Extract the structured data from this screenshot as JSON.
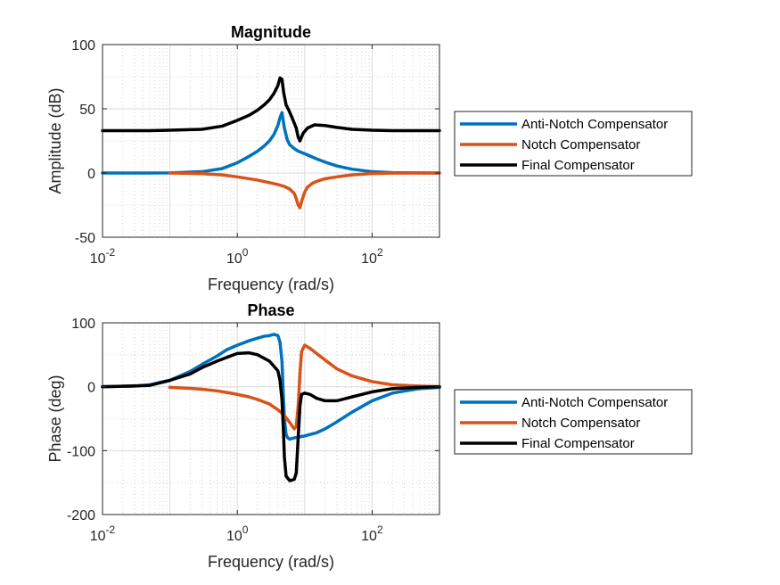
{
  "chart_data": [
    {
      "type": "line",
      "title": "Magnitude",
      "xlabel": "Frequency (rad/s)",
      "ylabel": "Amplitude (dB)",
      "xscale": "log",
      "xlim": [
        0.01,
        1000
      ],
      "ylim": [
        -50,
        100
      ],
      "xticks": [
        0.01,
        1,
        100
      ],
      "xtick_labels": [
        {
          "base": "10",
          "exp": "-2"
        },
        {
          "base": "10",
          "exp": "0"
        },
        {
          "base": "10",
          "exp": "2"
        }
      ],
      "yticks": [
        -50,
        0,
        50,
        100
      ],
      "ytick_labels": [
        "-50",
        "0",
        "50",
        "100"
      ],
      "grid": true,
      "minor_grid": true,
      "legend_position": "outside-right",
      "series": [
        {
          "name": "Anti-Notch Compensator",
          "color": "#0072BD",
          "x": [
            0.01,
            0.05,
            0.1,
            0.3,
            0.6,
            1,
            1.5,
            2,
            2.5,
            3,
            3.5,
            4,
            4.3,
            4.6,
            5,
            5.5,
            6,
            7,
            8,
            10,
            15,
            20,
            30,
            50,
            100,
            200,
            1000
          ],
          "y": [
            0,
            0,
            0.1,
            1,
            3.5,
            8,
            13,
            17,
            21,
            25,
            30,
            37,
            43,
            47,
            35,
            26,
            22,
            19,
            17,
            15,
            11,
            8.5,
            5.5,
            3,
            1,
            0.3,
            0
          ]
        },
        {
          "name": "Notch Compensator",
          "color": "#D95319",
          "x": [
            0.1,
            0.3,
            0.6,
            1,
            2,
            3,
            4,
            5,
            6,
            7,
            7.5,
            8,
            8.5,
            9,
            10,
            11,
            13,
            16,
            20,
            30,
            50,
            100,
            200,
            1000
          ],
          "y": [
            0,
            -0.5,
            -1.5,
            -3,
            -5.5,
            -7.5,
            -9,
            -10.5,
            -12.5,
            -16,
            -20,
            -25,
            -27,
            -22,
            -15,
            -11,
            -8,
            -6,
            -4.5,
            -3,
            -1.5,
            -0.4,
            -0.1,
            0
          ]
        },
        {
          "name": "Final Compensator",
          "color": "#000000",
          "x": [
            0.01,
            0.05,
            0.1,
            0.3,
            0.6,
            1,
            1.5,
            2,
            2.5,
            3,
            3.5,
            4,
            4.3,
            4.6,
            4.9,
            5.3,
            5.8,
            6.5,
            7.5,
            8,
            8.5,
            9.5,
            11,
            14,
            20,
            30,
            50,
            100,
            200,
            1000
          ],
          "y": [
            33,
            33,
            33.3,
            34,
            36.5,
            41,
            45,
            49,
            53,
            57,
            62,
            68,
            74,
            73,
            62,
            53,
            49,
            43,
            35,
            28,
            25,
            31,
            35,
            37.5,
            37,
            35.5,
            34,
            33.3,
            33,
            33
          ]
        }
      ]
    },
    {
      "type": "line",
      "title": "Phase",
      "xlabel": "Frequency (rad/s)",
      "ylabel": "Phase (deg)",
      "xscale": "log",
      "xlim": [
        0.01,
        1000
      ],
      "ylim": [
        -200,
        100
      ],
      "xticks": [
        0.01,
        1,
        100
      ],
      "xtick_labels": [
        {
          "base": "10",
          "exp": "-2"
        },
        {
          "base": "10",
          "exp": "0"
        },
        {
          "base": "10",
          "exp": "2"
        }
      ],
      "yticks": [
        -200,
        -100,
        0,
        100
      ],
      "ytick_labels": [
        "-200",
        "-100",
        "0",
        "100"
      ],
      "grid": true,
      "minor_grid": true,
      "legend_position": "outside-right",
      "series": [
        {
          "name": "Anti-Notch Compensator",
          "color": "#0072BD",
          "x": [
            0.01,
            0.03,
            0.05,
            0.1,
            0.2,
            0.3,
            0.5,
            0.7,
            1,
            1.5,
            2,
            2.5,
            3,
            3.5,
            4,
            4.3,
            4.6,
            4.8,
            5,
            5.3,
            5.6,
            6,
            7,
            10,
            15,
            20,
            30,
            50,
            100,
            200,
            500,
            1000
          ],
          "y": [
            0,
            1,
            3,
            10,
            24,
            35,
            48,
            58,
            65,
            72,
            76,
            79,
            80,
            82,
            80,
            70,
            40,
            -10,
            -50,
            -75,
            -80,
            -82,
            -80,
            -77,
            -72,
            -66,
            -55,
            -40,
            -22,
            -10,
            -3,
            -1
          ]
        },
        {
          "name": "Notch Compensator",
          "color": "#D95319",
          "x": [
            0.1,
            0.2,
            0.3,
            0.5,
            0.7,
            1,
            1.5,
            2,
            3,
            4,
            5,
            6,
            7,
            7.5,
            8,
            8.5,
            9,
            10,
            12,
            15,
            20,
            30,
            50,
            100,
            200,
            500,
            1000
          ],
          "y": [
            -1,
            -2.5,
            -4,
            -6.5,
            -9,
            -12,
            -16,
            -20,
            -27,
            -36,
            -45,
            -56,
            -66,
            -62,
            -30,
            20,
            55,
            65,
            60,
            52,
            42,
            28,
            17,
            8,
            3,
            1,
            0
          ]
        },
        {
          "name": "Final Compensator",
          "color": "#000000",
          "x": [
            0.01,
            0.05,
            0.1,
            0.2,
            0.3,
            0.5,
            0.7,
            1,
            1.5,
            2,
            3,
            4,
            4.3,
            4.6,
            4.8,
            5,
            5.3,
            6,
            7,
            7.5,
            8,
            8.5,
            9,
            10,
            12,
            15,
            20,
            30,
            50,
            100,
            200,
            500,
            1000
          ],
          "y": [
            0,
            2,
            10,
            20,
            30,
            40,
            46,
            52,
            53,
            50,
            40,
            25,
            10,
            -20,
            -60,
            -110,
            -140,
            -147,
            -145,
            -135,
            -80,
            -30,
            -12,
            -10,
            -12,
            -18,
            -22,
            -22,
            -16,
            -8,
            -3,
            -1,
            0
          ]
        }
      ]
    }
  ]
}
